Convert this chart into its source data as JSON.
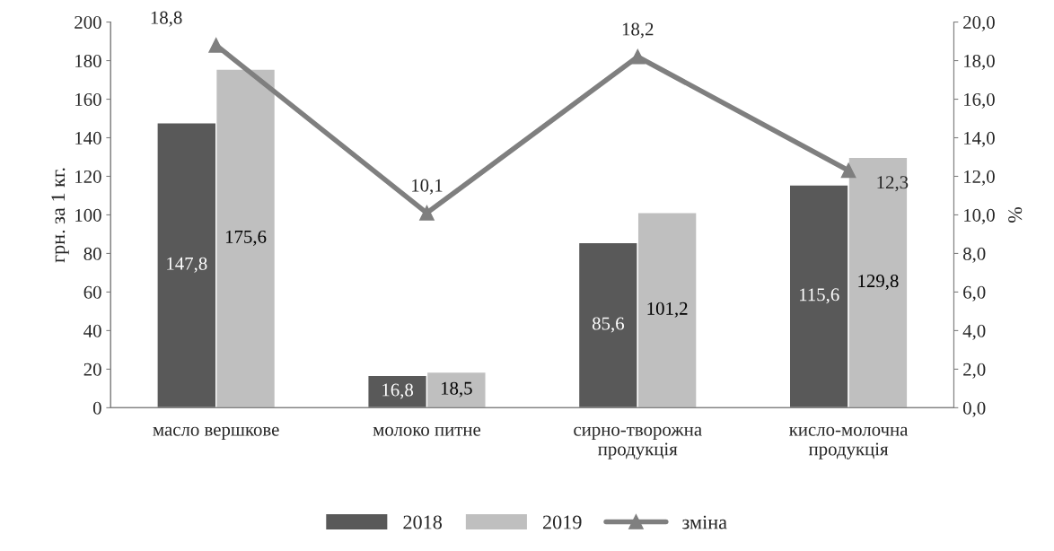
{
  "chart_data": {
    "type": "bar",
    "categories": [
      "масло вершкове",
      "молоко питне",
      "сирно-творожна\nпродукція",
      "кисло-молочна\nпродукція"
    ],
    "ylabel": "грн. за 1 кг.",
    "y2label": "%",
    "series": [
      {
        "name": "2018",
        "color": "#595959",
        "values": [
          147.8,
          16.8,
          85.6,
          115.6
        ],
        "value_labels": [
          "147,8",
          "16,8",
          "85,6",
          "115,6"
        ]
      },
      {
        "name": "2019",
        "color": "#bfbfbf",
        "values": [
          175.6,
          18.5,
          101.2,
          129.8
        ],
        "value_labels": [
          "175,6",
          "18,5",
          "101,2",
          "129,8"
        ]
      },
      {
        "name": "зміна",
        "type": "line",
        "axis": "y2",
        "color": "#7f7f7f",
        "marker": "triangle",
        "values": [
          18.8,
          10.1,
          18.2,
          12.3
        ],
        "value_labels": [
          "18,8",
          "10,1",
          "18,2",
          "12,3"
        ]
      }
    ],
    "ylim": [
      0,
      200
    ],
    "yticks": [
      0,
      20,
      40,
      60,
      80,
      100,
      120,
      140,
      160,
      180,
      200
    ],
    "y2lim": [
      0,
      20
    ],
    "y2ticks": [
      {
        "value": 0,
        "label": "0,0"
      },
      {
        "value": 2,
        "label": "2,0"
      },
      {
        "value": 4,
        "label": "4,0"
      },
      {
        "value": 6,
        "label": "6,0"
      },
      {
        "value": 8,
        "label": "8,0"
      },
      {
        "value": 10,
        "label": "10,0"
      },
      {
        "value": 12,
        "label": "12,0"
      },
      {
        "value": 14,
        "label": "14,0"
      },
      {
        "value": 16,
        "label": "16,0"
      },
      {
        "value": 18,
        "label": "18,0"
      },
      {
        "value": 20,
        "label": "20,0"
      }
    ],
    "grid": false,
    "legend": "bottom"
  }
}
